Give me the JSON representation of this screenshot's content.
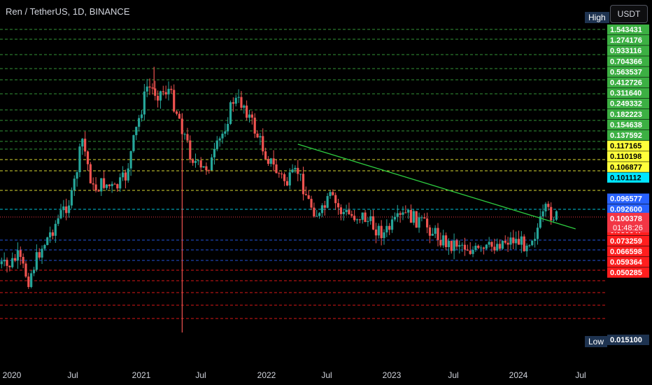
{
  "header": {
    "title": "Ren / TetherUS, 1D, BINANCE",
    "currency_button": "USDT",
    "high_label": "High",
    "low_label": "Low"
  },
  "colors": {
    "up": "#26a69a",
    "down": "#ef5350",
    "trendline": "#2ecc40",
    "green_level": "#3cb043",
    "yellow_level": "#ffff3b",
    "cyan_level": "#00e5ff",
    "blue_level": "#2962ff",
    "red_level": "#ff1e1e"
  },
  "chart_data": {
    "type": "candlestick",
    "title": "Ren / TetherUS, 1D, BINANCE",
    "x_ticks": [
      "2020",
      "Jul",
      "2021",
      "Jul",
      "2022",
      "Jul",
      "2023",
      "Jul",
      "2024",
      "Jul"
    ],
    "y_scale": "log",
    "levels": [
      {
        "value": "1.543431",
        "group": "green"
      },
      {
        "value": "1.274176",
        "group": "green"
      },
      {
        "value": "0.933116",
        "group": "green"
      },
      {
        "value": "0.704366",
        "group": "green"
      },
      {
        "value": "0.563537",
        "group": "green"
      },
      {
        "value": "0.412726",
        "group": "green"
      },
      {
        "value": "0.311640",
        "group": "green"
      },
      {
        "value": "0.249332",
        "group": "green"
      },
      {
        "value": "0.182223",
        "group": "green"
      },
      {
        "value": "0.154638",
        "group": "green"
      },
      {
        "value": "0.137592",
        "group": "green"
      },
      {
        "value": "0.117165",
        "group": "yellow"
      },
      {
        "value": "0.110198",
        "group": "yellow"
      },
      {
        "value": "0.106877",
        "group": "yellow"
      },
      {
        "value": "0.101112",
        "group": "cyan"
      },
      {
        "value": "0.096577",
        "group": "blue"
      },
      {
        "value": "0.092600",
        "group": "blue"
      },
      {
        "value": "0.086700",
        "group": "blue"
      },
      {
        "value": "0.080647",
        "group": "red"
      },
      {
        "value": "0.073259",
        "group": "red"
      },
      {
        "value": "0.066598",
        "group": "red"
      },
      {
        "value": "0.059364",
        "group": "red"
      },
      {
        "value": "0.050285",
        "group": "red"
      }
    ],
    "high_value": "1.543431",
    "low_value": "0.015100",
    "current_price": "0.100378",
    "countdown": "01:48:26",
    "price_path": [
      [
        "2019-12",
        0.045
      ],
      [
        "2020-01",
        0.042
      ],
      [
        "2020-02",
        0.05
      ],
      [
        "2020-03",
        0.034
      ],
      [
        "2020-04",
        0.055
      ],
      [
        "2020-05",
        0.075
      ],
      [
        "2020-06",
        0.105
      ],
      [
        "2020-07",
        0.14
      ],
      [
        "2020-08",
        0.38
      ],
      [
        "2020-09",
        0.16
      ],
      [
        "2020-10",
        0.18
      ],
      [
        "2020-11",
        0.16
      ],
      [
        "2020-12",
        0.2
      ],
      [
        "2021-01",
        0.45
      ],
      [
        "2021-02",
        0.95
      ],
      [
        "2021-03",
        0.85
      ],
      [
        "2021-04",
        0.9
      ],
      [
        "2021-05",
        0.55
      ],
      [
        "2021-06",
        0.3
      ],
      [
        "2021-07",
        0.22
      ],
      [
        "2021-08",
        0.26
      ],
      [
        "2021-09",
        0.42
      ],
      [
        "2021-10",
        0.75
      ],
      [
        "2021-11",
        0.7
      ],
      [
        "2021-12",
        0.45
      ],
      [
        "2022-01",
        0.3
      ],
      [
        "2022-02",
        0.22
      ],
      [
        "2022-03",
        0.18
      ],
      [
        "2022-04",
        0.22
      ],
      [
        "2022-05",
        0.13
      ],
      [
        "2022-06",
        0.1
      ],
      [
        "2022-07",
        0.14
      ],
      [
        "2022-08",
        0.11
      ],
      [
        "2022-09",
        0.102
      ],
      [
        "2022-10",
        0.102
      ],
      [
        "2022-11",
        0.085
      ],
      [
        "2022-12",
        0.075
      ],
      [
        "2023-01",
        0.09
      ],
      [
        "2023-02",
        0.105
      ],
      [
        "2023-03",
        0.095
      ],
      [
        "2023-04",
        0.085
      ],
      [
        "2023-05",
        0.072
      ],
      [
        "2023-06",
        0.062
      ],
      [
        "2023-07",
        0.065
      ],
      [
        "2023-08",
        0.057
      ],
      [
        "2023-09",
        0.054
      ],
      [
        "2023-10",
        0.06
      ],
      [
        "2023-11",
        0.066
      ],
      [
        "2023-12",
        0.068
      ],
      [
        "2024-01",
        0.063
      ],
      [
        "2024-02",
        0.075
      ],
      [
        "2024-03",
        0.11
      ],
      [
        "2024-04",
        0.1
      ]
    ],
    "spikes": [
      {
        "date": "2021-02",
        "high": 1.543431
      },
      {
        "date": "2021-05",
        "low": 0.0151
      }
    ],
    "trendline": [
      [
        "2022-04",
        0.24
      ],
      [
        "2024-05",
        0.088
      ]
    ]
  }
}
